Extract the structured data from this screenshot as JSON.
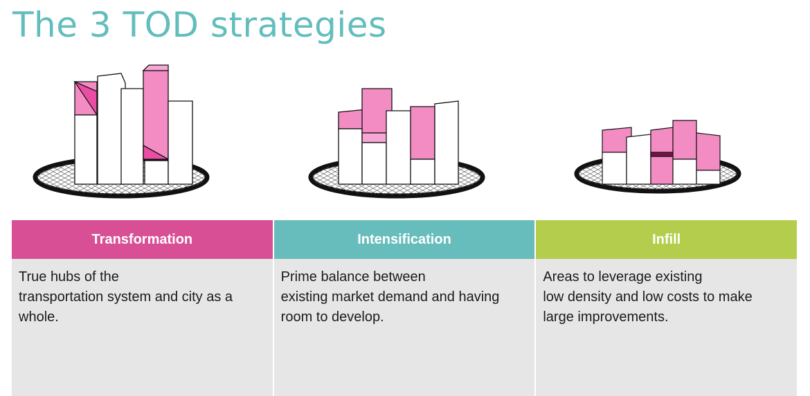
{
  "title": "The 3 TOD strategies",
  "colors": {
    "title": "#63bdbd",
    "transformation": "#d94f96",
    "intensification": "#66bdbc",
    "infill": "#b4cd4c",
    "highlight": "#f06ab8",
    "body_bg": "#e6e6e6"
  },
  "strategies": [
    {
      "name": "Transformation",
      "description": "True hubs of the\ntransportation system and city as a\nwhole."
    },
    {
      "name": "Intensification",
      "description": "Prime balance between\nexisting market demand and having\nroom to develop."
    },
    {
      "name": "Infill",
      "description": "Areas to leverage existing\nlow density and low costs to make\nlarge improvements."
    }
  ]
}
